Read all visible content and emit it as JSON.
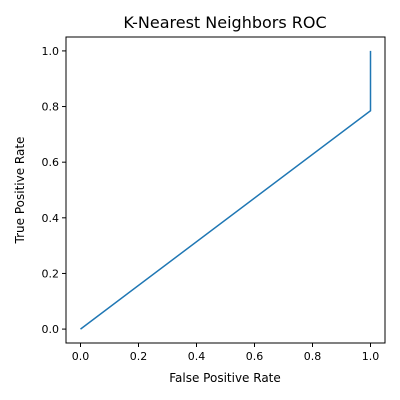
{
  "chart_data": {
    "type": "line",
    "title": "K-Nearest Neighbors ROC",
    "xlabel": "False Positive Rate",
    "ylabel": "True Positive Rate",
    "xlim": [
      -0.05,
      1.05
    ],
    "ylim": [
      -0.05,
      1.05
    ],
    "xticks": [
      "0.0",
      "0.2",
      "0.4",
      "0.6",
      "0.8",
      "1.0"
    ],
    "yticks": [
      "0.0",
      "0.2",
      "0.4",
      "0.6",
      "0.8",
      "1.0"
    ],
    "grid": false,
    "series": [
      {
        "color": "#1f77b4",
        "x": [
          0.0,
          1.0,
          1.0
        ],
        "y": [
          0.0,
          0.785,
          1.0
        ]
      }
    ]
  }
}
